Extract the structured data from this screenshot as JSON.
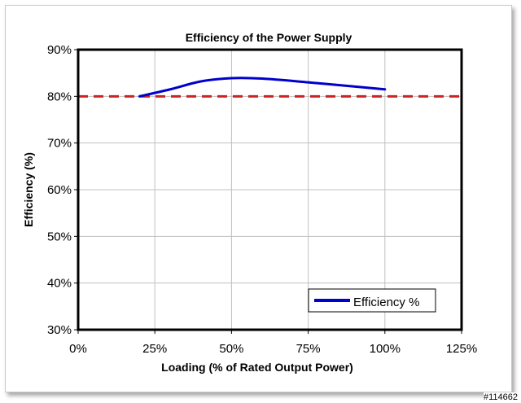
{
  "chart_data": {
    "type": "line",
    "title": "Efficiency of the Power Supply",
    "xlabel": "Loading (% of Rated Output Power)",
    "ylabel": "Efficiency (%)",
    "xlim": [
      0,
      125
    ],
    "ylim": [
      30,
      90
    ],
    "x_ticks": [
      "0%",
      "25%",
      "50%",
      "75%",
      "100%",
      "125%"
    ],
    "y_ticks": [
      "30%",
      "40%",
      "50%",
      "60%",
      "70%",
      "80%",
      "90%"
    ],
    "grid": true,
    "legend_position": "bottom-right",
    "series": [
      {
        "name": "Efficiency %",
        "color": "#0000cc",
        "x": [
          20,
          30,
          40,
          50,
          60,
          75,
          90,
          100
        ],
        "y": [
          80.0,
          81.5,
          83.2,
          83.9,
          83.8,
          83.0,
          82.1,
          81.5
        ]
      }
    ],
    "reference_line": {
      "y": 80,
      "color": "#cc2222",
      "style": "dashed"
    }
  },
  "watermark": "#114662",
  "colors": {
    "plot_border": "#000000",
    "grid": "#c0c0c0"
  }
}
